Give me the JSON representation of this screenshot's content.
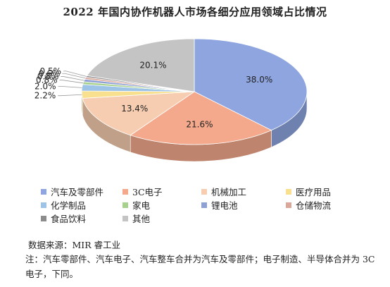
{
  "chart_data": {
    "type": "pie",
    "title": "2022 年国内协作机器人市场各细分应用领域占比情况",
    "categories": [
      "汽车及零部件",
      "3C电子",
      "机械加工",
      "医疗用品",
      "化学制品",
      "家电",
      "锂电池",
      "仓储物流",
      "食品饮料",
      "其他"
    ],
    "values": [
      38.0,
      21.6,
      13.4,
      2.2,
      2.0,
      0.8,
      0.8,
      0.6,
      0.5,
      20.1
    ],
    "labels": [
      "38.0%",
      "21.6%",
      "13.4%",
      "2.2%",
      "2.0%",
      "0.8%",
      "0.8%",
      "0.6%",
      "0.5%",
      "20.1%"
    ],
    "colors": [
      "#8ea5e0",
      "#f4a98c",
      "#f6cdb0",
      "#f9e08f",
      "#9dc3e6",
      "#a9d18e",
      "#8fa0d4",
      "#d9a89a",
      "#8c8c8c",
      "#c4c4c4"
    ],
    "legend_position": "bottom",
    "style": "3d"
  },
  "source": "数据来源：MIR 睿工业",
  "note": "注：汽车零部件、汽车电子、汽车整车合并为汽车及零部件；电子制造、半导体合并为 3C 电子，下同。"
}
